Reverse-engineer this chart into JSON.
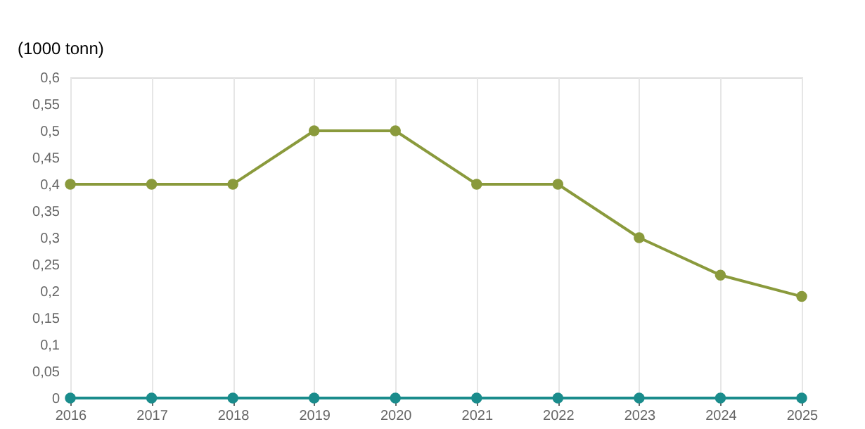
{
  "chart_data": {
    "type": "line",
    "ylabel": "(1000 tonn)",
    "categories": [
      "2016",
      "2017",
      "2018",
      "2019",
      "2020",
      "2021",
      "2022",
      "2023",
      "2024",
      "2025"
    ],
    "series": [
      {
        "color": "#8a9a3c",
        "values": [
          0.4,
          0.4,
          0.4,
          0.5,
          0.5,
          0.4,
          0.4,
          0.3,
          0.23,
          0.19
        ]
      },
      {
        "color": "#1a8c8c",
        "values": [
          0,
          0,
          0,
          0,
          0,
          0,
          0,
          0,
          0,
          0
        ]
      }
    ],
    "ylim": [
      0,
      0.6
    ],
    "yticks": [
      0,
      {
        "value": 0.05,
        "label": "0,05"
      },
      {
        "value": 0.1,
        "label": "0,1"
      },
      {
        "value": 0.15,
        "label": "0,15"
      },
      {
        "value": 0.2,
        "label": "0,2"
      },
      {
        "value": 0.25,
        "label": "0,25"
      },
      {
        "value": 0.3,
        "label": "0,3"
      },
      {
        "value": 0.35,
        "label": "0,35"
      },
      {
        "value": 0.4,
        "label": "0,4"
      },
      {
        "value": 0.45,
        "label": "0,45"
      },
      {
        "value": 0.5,
        "label": "0,5"
      },
      {
        "value": 0.55,
        "label": "0,55"
      },
      {
        "value": 0.6,
        "label": "0,6"
      }
    ],
    "grid": "x",
    "marker": "circle",
    "line_style": "solid"
  }
}
